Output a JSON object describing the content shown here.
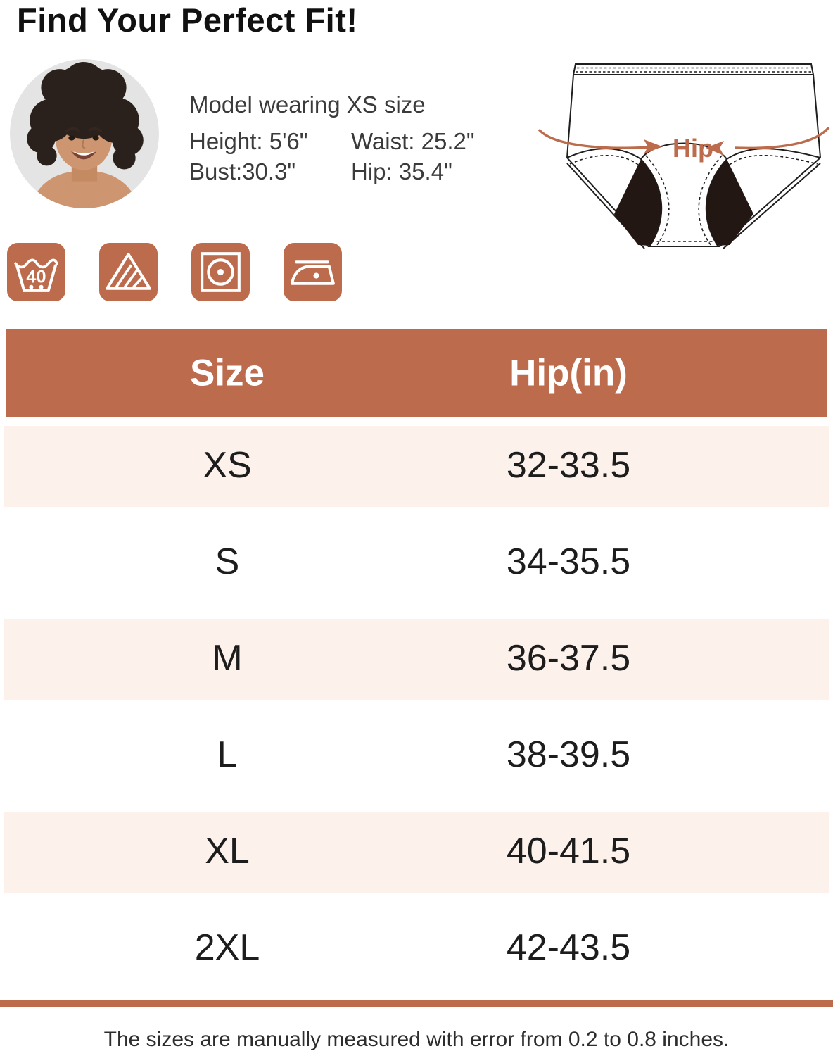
{
  "title": "Find Your Perfect Fit!",
  "model": {
    "caption": "Model wearing XS size",
    "stats": {
      "height": "Height: 5'6\"",
      "waist": "Waist: 25.2\"",
      "bust": "Bust:30.3\"",
      "hip": "Hip: 35.4\""
    }
  },
  "care_icons": [
    {
      "name": "machine-wash-40-icon",
      "label": "40"
    },
    {
      "name": "non-chlorine-bleach-icon"
    },
    {
      "name": "tumble-dry-low-icon"
    },
    {
      "name": "iron-low-icon"
    }
  ],
  "diagram": {
    "label": "Hip"
  },
  "table": {
    "headers": [
      "Size",
      "Hip(in)"
    ],
    "rows": [
      {
        "size": "XS",
        "hip": "32-33.5"
      },
      {
        "size": "S",
        "hip": "34-35.5"
      },
      {
        "size": "M",
        "hip": "36-37.5"
      },
      {
        "size": "L",
        "hip": "38-39.5"
      },
      {
        "size": "XL",
        "hip": "40-41.5"
      },
      {
        "size": "2XL",
        "hip": "42-43.5"
      }
    ]
  },
  "footer": {
    "note": "The sizes are manually measured with error from 0.2 to 0.8 inches."
  },
  "colors": {
    "accent": "#BC6C4D",
    "row_alt": "#FCF1EB",
    "header_text": "#FFFFFF",
    "body_text": "#1D1D1D"
  }
}
